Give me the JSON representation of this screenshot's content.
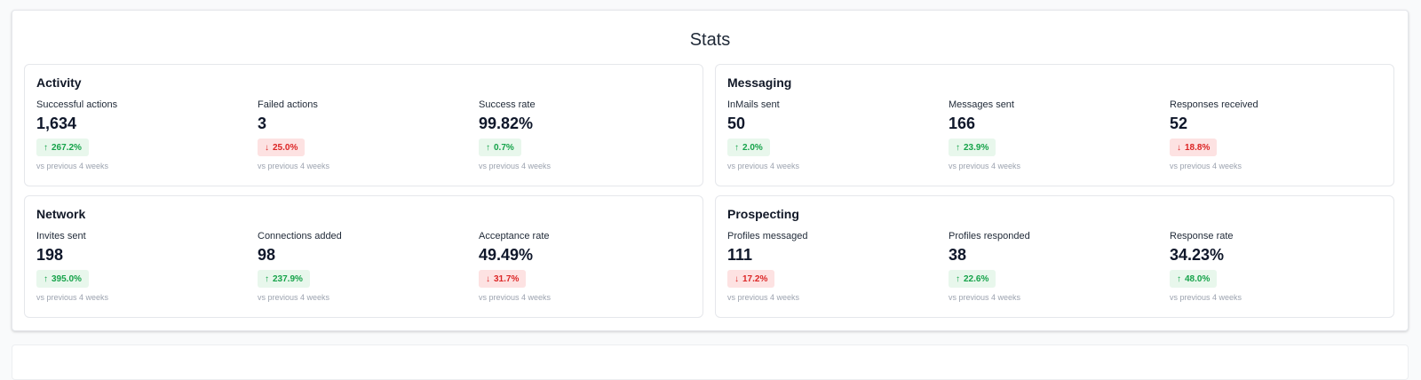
{
  "stats": {
    "title": "Stats",
    "cards": [
      {
        "title": "Activity",
        "metrics": [
          {
            "label": "Successful actions",
            "value": "1,634",
            "change": "267.2%",
            "direction": "up",
            "compare": "vs previous 4 weeks"
          },
          {
            "label": "Failed actions",
            "value": "3",
            "change": "25.0%",
            "direction": "down",
            "compare": "vs previous 4 weeks"
          },
          {
            "label": "Success rate",
            "value": "99.82%",
            "change": "0.7%",
            "direction": "up",
            "compare": "vs previous 4 weeks"
          }
        ]
      },
      {
        "title": "Messaging",
        "metrics": [
          {
            "label": "InMails sent",
            "value": "50",
            "change": "2.0%",
            "direction": "up",
            "compare": "vs previous 4 weeks"
          },
          {
            "label": "Messages sent",
            "value": "166",
            "change": "23.9%",
            "direction": "up",
            "compare": "vs previous 4 weeks"
          },
          {
            "label": "Responses received",
            "value": "52",
            "change": "18.8%",
            "direction": "down",
            "compare": "vs previous 4 weeks"
          }
        ]
      },
      {
        "title": "Network",
        "metrics": [
          {
            "label": "Invites sent",
            "value": "198",
            "change": "395.0%",
            "direction": "up",
            "compare": "vs previous 4 weeks"
          },
          {
            "label": "Connections added",
            "value": "98",
            "change": "237.9%",
            "direction": "up",
            "compare": "vs previous 4 weeks"
          },
          {
            "label": "Acceptance rate",
            "value": "49.49%",
            "change": "31.7%",
            "direction": "down",
            "compare": "vs previous 4 weeks"
          }
        ]
      },
      {
        "title": "Prospecting",
        "metrics": [
          {
            "label": "Profiles messaged",
            "value": "111",
            "change": "17.2%",
            "direction": "down",
            "compare": "vs previous 4 weeks"
          },
          {
            "label": "Profiles responded",
            "value": "38",
            "change": "22.6%",
            "direction": "up",
            "compare": "vs previous 4 weeks"
          },
          {
            "label": "Response rate",
            "value": "34.23%",
            "change": "48.0%",
            "direction": "up",
            "compare": "vs previous 4 weeks"
          }
        ]
      }
    ]
  },
  "icons": {
    "up": "↑",
    "down": "↓"
  },
  "colors": {
    "positive_text": "#16a34a",
    "positive_bg": "#e8f7ec",
    "negative_text": "#dc2626",
    "negative_bg": "#fde2e2"
  }
}
